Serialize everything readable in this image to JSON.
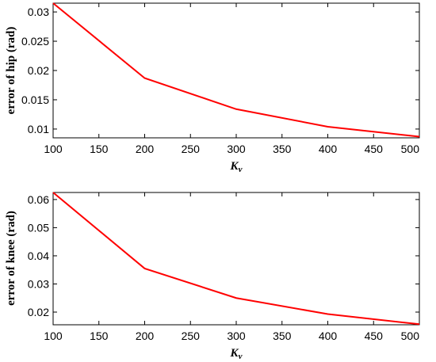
{
  "chart_data": [
    {
      "type": "line",
      "title": "",
      "xlabel": "Kv",
      "xlabel_main": "K",
      "xlabel_sub": "v",
      "ylabel": "error of  hip (rad)",
      "x": [
        100,
        200,
        300,
        400,
        500
      ],
      "series": [
        {
          "color": "#ff0000",
          "values": [
            0.0315,
            0.0187,
            0.0134,
            0.0104,
            0.0087
          ]
        }
      ],
      "xlim": [
        100,
        500
      ],
      "ylim": [
        0.0085,
        0.0315
      ],
      "xticks": [
        100,
        150,
        200,
        250,
        300,
        350,
        400,
        450,
        500
      ],
      "xtick_labels": [
        "100",
        "150",
        "200",
        "250",
        "300",
        "350",
        "400",
        "450",
        "500"
      ],
      "yticks": [
        0.01,
        0.015,
        0.02,
        0.025,
        0.03
      ],
      "ytick_labels": [
        "0.01",
        "0.015",
        "0.02",
        "0.025",
        "0.03"
      ],
      "grid": false,
      "legend": "none"
    },
    {
      "type": "line",
      "title": "",
      "xlabel": "Kv",
      "xlabel_main": "K",
      "xlabel_sub": "v",
      "ylabel": "error  of knee  (rad)",
      "x": [
        100,
        200,
        300,
        400,
        500
      ],
      "series": [
        {
          "color": "#ff0000",
          "values": [
            0.0625,
            0.0355,
            0.025,
            0.0193,
            0.0157
          ]
        }
      ],
      "xlim": [
        100,
        500
      ],
      "ylim": [
        0.0155,
        0.0625
      ],
      "xticks": [
        100,
        150,
        200,
        250,
        300,
        350,
        400,
        450,
        500
      ],
      "xtick_labels": [
        "100",
        "150",
        "200",
        "250",
        "300",
        "350",
        "400",
        "450",
        "500"
      ],
      "yticks": [
        0.02,
        0.03,
        0.04,
        0.05,
        0.06
      ],
      "ytick_labels": [
        "0.02",
        "0.03",
        "0.04",
        "0.05",
        "0.06"
      ],
      "grid": false,
      "legend": "none"
    }
  ]
}
